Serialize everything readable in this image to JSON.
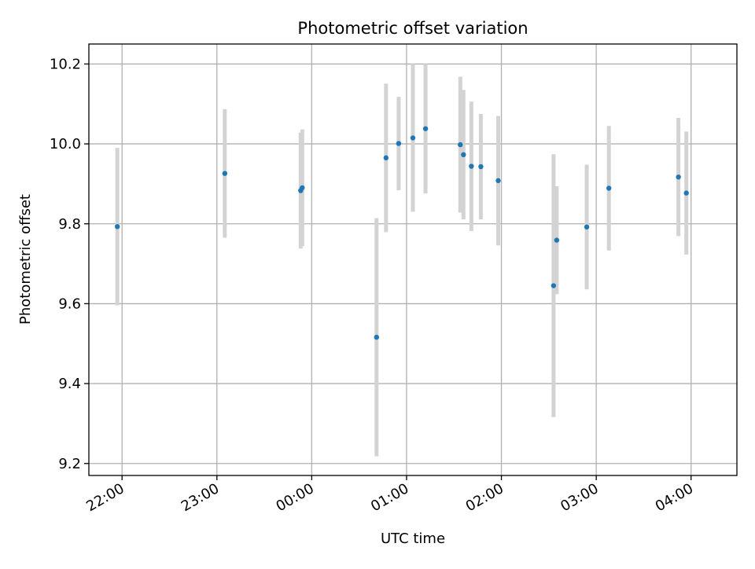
{
  "chart_data": {
    "type": "scatter",
    "title": "Photometric offset variation",
    "xlabel": "UTC time",
    "ylabel": "Photometric offset",
    "x_axis_type": "time",
    "x_start_date": "2000-01-01",
    "xlim": [
      "21:39",
      "04:29"
    ],
    "ylim": [
      9.17,
      10.25
    ],
    "grid": true,
    "xticks": [
      "22:00",
      "23:00",
      "00:00",
      "01:00",
      "02:00",
      "03:00",
      "04:00"
    ],
    "yticks": [
      "9.2",
      "9.4",
      "9.6",
      "9.8",
      "10.0",
      "10.2"
    ],
    "colors": {
      "points": "#1f77b4",
      "errorbars": "#d3d3d3",
      "grid": "#b0b0b0"
    },
    "points": [
      {
        "x": "21:57",
        "y": 9.793,
        "err": 0.197
      },
      {
        "x": "23:05",
        "y": 9.926,
        "err": 0.161
      },
      {
        "x": "23:53",
        "y": 9.883,
        "err": 0.145
      },
      {
        "x": "23:54",
        "y": 9.89,
        "err": 0.146
      },
      {
        "x": "00:41",
        "y": 9.516,
        "err": 0.298
      },
      {
        "x": "00:47",
        "y": 9.965,
        "err": 0.186
      },
      {
        "x": "00:55",
        "y": 10.001,
        "err": 0.117
      },
      {
        "x": "01:04",
        "y": 10.015,
        "err": 0.185
      },
      {
        "x": "01:12",
        "y": 10.038,
        "err": 0.162
      },
      {
        "x": "01:34",
        "y": 9.998,
        "err": 0.17
      },
      {
        "x": "01:36",
        "y": 9.973,
        "err": 0.162
      },
      {
        "x": "01:41",
        "y": 9.944,
        "err": 0.162
      },
      {
        "x": "01:47",
        "y": 9.943,
        "err": 0.132
      },
      {
        "x": "01:58",
        "y": 9.908,
        "err": 0.162
      },
      {
        "x": "02:33",
        "y": 9.645,
        "err": 0.329
      },
      {
        "x": "02:35",
        "y": 9.759,
        "err": 0.135
      },
      {
        "x": "02:54",
        "y": 9.792,
        "err": 0.156
      },
      {
        "x": "03:08",
        "y": 9.889,
        "err": 0.156
      },
      {
        "x": "03:52",
        "y": 9.917,
        "err": 0.148
      },
      {
        "x": "03:57",
        "y": 9.877,
        "err": 0.154
      }
    ]
  }
}
